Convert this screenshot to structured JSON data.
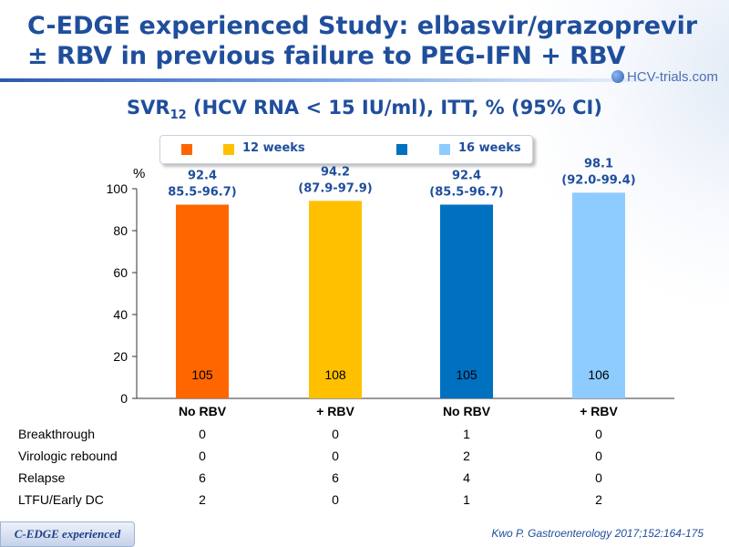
{
  "title_line1": "C-EDGE experienced Study: elbasvir/grazoprevir",
  "title_line2": "± RBV in previous failure to PEG-IFN + RBV",
  "logo_text": "HCV-trials.com",
  "subtitle_main": "SVR",
  "subtitle_sub": "12",
  "subtitle_rest": " (HCV RNA < 15 IU/ml), ITT, % (95% CI)",
  "legend": [
    {
      "label": "12 weeks",
      "colors": [
        "#ff6600",
        "#ffc000"
      ]
    },
    {
      "label": "16 weeks",
      "colors": [
        "#0070c0",
        "#8ecbff"
      ]
    }
  ],
  "chart_data": {
    "type": "bar",
    "categories": [
      "No RBV",
      "+ RBV",
      "No RBV",
      "+ RBV"
    ],
    "values": [
      92.4,
      94.2,
      92.4,
      98.1
    ],
    "ci_labels": [
      "85.5-96.7)",
      "(87.9-97.9)",
      "(85.5-96.7)",
      "(92.0-99.4)"
    ],
    "n_labels": [
      "105",
      "108",
      "105",
      "106"
    ],
    "colors": [
      "#ff6600",
      "#ffc000",
      "#0070c0",
      "#8ecbff"
    ],
    "ylabel": "%",
    "ylim": [
      0,
      100
    ],
    "yticks": [
      0,
      20,
      40,
      60,
      80,
      100
    ]
  },
  "table": {
    "rows": [
      {
        "label": "Breakthrough",
        "values": [
          "0",
          "0",
          "1",
          "0"
        ]
      },
      {
        "label": "Virologic rebound",
        "values": [
          "0",
          "0",
          "2",
          "0"
        ]
      },
      {
        "label": "Relapse",
        "values": [
          "6",
          "6",
          "4",
          "0"
        ]
      },
      {
        "label": "LTFU/Early DC",
        "values": [
          "2",
          "0",
          "1",
          "2"
        ]
      }
    ]
  },
  "reference": "Kwo P. Gastroenterology 2017;152:164-175",
  "footer_tag": "C-EDGE experienced"
}
